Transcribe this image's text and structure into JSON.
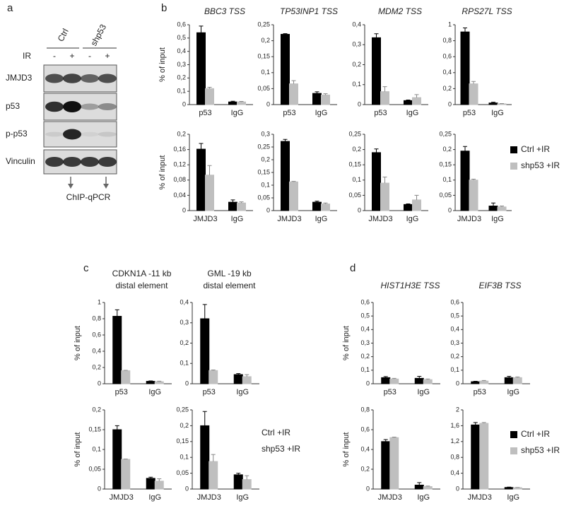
{
  "blot": {
    "label": "a",
    "groups": [
      "Ctrl",
      "shp53"
    ],
    "treatment": "IR",
    "lanes": [
      "-",
      "+",
      "-",
      "+"
    ],
    "rows": [
      "JMJD3",
      "p53",
      "p-p53",
      "Vinculin"
    ],
    "note": "ChIP-qPCR"
  },
  "panel_labels": [
    "b",
    "c",
    "d"
  ],
  "chart_data": [
    {
      "type": "bar",
      "title": "BBC3 TSS",
      "y_label": "% of input",
      "categories": [
        "p53",
        "IgG"
      ],
      "series": [
        {
          "color": "#000000",
          "values": [
            0.54,
            0.02
          ],
          "errors": [
            0.05,
            0.005
          ]
        },
        {
          "color": "#bfbfbf",
          "values": [
            0.12,
            0.02
          ],
          "errors": [
            0.01,
            0.004
          ]
        }
      ],
      "ylim": [
        0,
        0.6
      ],
      "yticks": [
        0,
        {
          "value": 0.1,
          "label": "0,1"
        },
        {
          "value": 0.2,
          "label": "0,2"
        },
        {
          "value": 0.3,
          "label": "0,3"
        },
        {
          "value": 0.4,
          "label": "0,4"
        },
        {
          "value": 0.5,
          "label": "0,5"
        },
        {
          "value": 0.6,
          "label": "0,6"
        }
      ]
    },
    {
      "type": "bar",
      "title": "TP53INP1 TSS",
      "categories": [
        "p53",
        "IgG"
      ],
      "series": [
        {
          "color": "#000000",
          "values": [
            0.22,
            0.035
          ],
          "errors": [
            0.002,
            0.005
          ]
        },
        {
          "color": "#bfbfbf",
          "values": [
            0.065,
            0.03
          ],
          "errors": [
            0.01,
            0.004
          ]
        }
      ],
      "ylim": [
        0,
        0.25
      ],
      "yticks": [
        0,
        {
          "value": 0.05,
          "label": "0,05"
        },
        {
          "value": 0.1,
          "label": "0,1"
        },
        {
          "value": 0.15,
          "label": "0,15"
        },
        {
          "value": 0.2,
          "label": "0,2"
        },
        {
          "value": 0.25,
          "label": "0,25"
        }
      ]
    },
    {
      "type": "bar",
      "title": "MDM2 TSS",
      "categories": [
        "p53",
        "IgG"
      ],
      "series": [
        {
          "color": "#000000",
          "values": [
            0.335,
            0.02
          ],
          "errors": [
            0.02,
            0.003
          ]
        },
        {
          "color": "#bfbfbf",
          "values": [
            0.065,
            0.035
          ],
          "errors": [
            0.025,
            0.015
          ]
        }
      ],
      "ylim": [
        0,
        0.4
      ],
      "yticks": [
        0,
        {
          "value": 0.1,
          "label": "0,1"
        },
        {
          "value": 0.2,
          "label": "0,2"
        },
        {
          "value": 0.3,
          "label": "0,3"
        },
        {
          "value": 0.4,
          "label": "0,4"
        }
      ]
    },
    {
      "type": "bar",
      "title": "RPS27L TSS",
      "categories": [
        "p53",
        "IgG"
      ],
      "series": [
        {
          "color": "#000000",
          "values": [
            0.91,
            0.02
          ],
          "errors": [
            0.05,
            0.01
          ]
        },
        {
          "color": "#bfbfbf",
          "values": [
            0.26,
            0.01
          ],
          "errors": [
            0.03,
            0.003
          ]
        }
      ],
      "ylim": [
        0,
        1
      ],
      "yticks": [
        0,
        {
          "value": 0.2,
          "label": "0,2"
        },
        {
          "value": 0.4,
          "label": "0,4"
        },
        {
          "value": 0.6,
          "label": "0,6"
        },
        {
          "value": 0.8,
          "label": "0,8"
        },
        1
      ]
    },
    {
      "type": "bar",
      "y_label": "% of input",
      "categories": [
        "JMJD3",
        "IgG"
      ],
      "series": [
        {
          "color": "#000000",
          "values": [
            0.161,
            0.022
          ],
          "errors": [
            0.015,
            0.006
          ]
        },
        {
          "color": "#bfbfbf",
          "values": [
            0.093,
            0.02
          ],
          "errors": [
            0.025,
            0.003
          ]
        }
      ],
      "ylim": [
        0,
        0.2
      ],
      "yticks": [
        0,
        {
          "value": 0.04,
          "label": "0,04"
        },
        {
          "value": 0.08,
          "label": "0,08"
        },
        {
          "value": 0.12,
          "label": "0,12"
        },
        {
          "value": 0.16,
          "label": "0,16"
        },
        {
          "value": 0.2,
          "label": "0,2"
        }
      ]
    },
    {
      "type": "bar",
      "categories": [
        "JMJD3",
        "IgG"
      ],
      "series": [
        {
          "color": "#000000",
          "values": [
            0.272,
            0.033
          ],
          "errors": [
            0.008,
            0.004
          ]
        },
        {
          "color": "#bfbfbf",
          "values": [
            0.113,
            0.026
          ],
          "errors": [
            0.002,
            0.004
          ]
        }
      ],
      "ylim": [
        0,
        0.3
      ],
      "yticks": [
        0,
        {
          "value": 0.05,
          "label": "0,05"
        },
        {
          "value": 0.1,
          "label": "0,1"
        },
        {
          "value": 0.15,
          "label": "0,15"
        },
        {
          "value": 0.2,
          "label": "0,2"
        },
        {
          "value": 0.25,
          "label": "0,25"
        },
        {
          "value": 0.3,
          "label": "0,3"
        }
      ]
    },
    {
      "type": "bar",
      "categories": [
        "JMJD3",
        "IgG"
      ],
      "series": [
        {
          "color": "#000000",
          "values": [
            0.19,
            0.02
          ],
          "errors": [
            0.012,
            0.002
          ]
        },
        {
          "color": "#bfbfbf",
          "values": [
            0.09,
            0.035
          ],
          "errors": [
            0.02,
            0.015
          ]
        }
      ],
      "ylim": [
        0,
        0.25
      ],
      "yticks": [
        0,
        {
          "value": 0.05,
          "label": "0,05"
        },
        {
          "value": 0.1,
          "label": "0,1"
        },
        {
          "value": 0.15,
          "label": "0,15"
        },
        {
          "value": 0.2,
          "label": "0,2"
        },
        {
          "value": 0.25,
          "label": "0,25"
        }
      ]
    },
    {
      "type": "bar",
      "categories": [
        "JMJD3",
        "IgG"
      ],
      "series": [
        {
          "name": "Ctrl +IR",
          "color": "#000000",
          "values": [
            0.195,
            0.015
          ],
          "errors": [
            0.015,
            0.01
          ]
        },
        {
          "name": "shp53 +IR",
          "color": "#bfbfbf",
          "values": [
            0.1,
            0.012
          ],
          "errors": [
            0.003,
            0.003
          ]
        }
      ],
      "ylim": [
        0,
        0.25
      ],
      "yticks": [
        0,
        {
          "value": 0.05,
          "label": "0,05"
        },
        {
          "value": 0.1,
          "label": "0,1"
        },
        {
          "value": 0.15,
          "label": "0,15"
        },
        {
          "value": 0.2,
          "label": "0,2"
        },
        {
          "value": 0.25,
          "label": "0,25"
        }
      ],
      "legend": "right",
      "legend_markers": true
    },
    {
      "type": "bar",
      "title": [
        "CDKN1A -11 kb",
        "distal element"
      ],
      "y_label": "% of input",
      "categories": [
        "p53",
        "IgG"
      ],
      "series": [
        {
          "color": "#000000",
          "values": [
            0.83,
            0.03
          ],
          "errors": [
            0.08,
            0.005
          ]
        },
        {
          "color": "#bfbfbf",
          "values": [
            0.16,
            0.025
          ],
          "errors": [
            0.005,
            0.007
          ]
        }
      ],
      "ylim": [
        0,
        1
      ],
      "yticks": [
        0,
        {
          "value": 0.2,
          "label": "0,2"
        },
        {
          "value": 0.4,
          "label": "0,4"
        },
        {
          "value": 0.6,
          "label": "0,6"
        },
        {
          "value": 0.8,
          "label": "0,8"
        },
        1
      ]
    },
    {
      "type": "bar",
      "title": [
        "GML -19 kb",
        "distal element"
      ],
      "categories": [
        "p53",
        "IgG"
      ],
      "series": [
        {
          "color": "#000000",
          "values": [
            0.32,
            0.045
          ],
          "errors": [
            0.07,
            0.005
          ]
        },
        {
          "color": "#bfbfbf",
          "values": [
            0.065,
            0.035
          ],
          "errors": [
            0.003,
            0.01
          ]
        }
      ],
      "ylim": [
        0,
        0.4
      ],
      "yticks": [
        0,
        {
          "value": 0.1,
          "label": "0,1"
        },
        {
          "value": 0.2,
          "label": "0,2"
        },
        {
          "value": 0.3,
          "label": "0,3"
        },
        {
          "value": 0.4,
          "label": "0,4"
        }
      ]
    },
    {
      "type": "bar",
      "y_label": "% of input",
      "categories": [
        "JMJD3",
        "IgG"
      ],
      "series": [
        {
          "color": "#000000",
          "values": [
            0.15,
            0.027
          ],
          "errors": [
            0.01,
            0.003
          ]
        },
        {
          "color": "#bfbfbf",
          "values": [
            0.075,
            0.02
          ],
          "errors": [
            0.001,
            0.006
          ]
        }
      ],
      "ylim": [
        0,
        0.2
      ],
      "yticks": [
        0,
        {
          "value": 0.05,
          "label": "0,05"
        },
        {
          "value": 0.1,
          "label": "0,1"
        },
        {
          "value": 0.15,
          "label": "0,15"
        },
        {
          "value": 0.2,
          "label": "0,2"
        }
      ]
    },
    {
      "type": "bar",
      "categories": [
        "JMJD3",
        "IgG"
      ],
      "series": [
        {
          "name": "Ctrl +IR",
          "color": "#000000",
          "values": [
            0.2,
            0.045
          ],
          "errors": [
            0.045,
            0.005
          ]
        },
        {
          "name": "shp53 +IR",
          "color": "#bfbfbf",
          "values": [
            0.087,
            0.03
          ],
          "errors": [
            0.022,
            0.012
          ]
        }
      ],
      "ylim": [
        0,
        0.25
      ],
      "yticks": [
        0,
        {
          "value": 0.05,
          "label": "0,05"
        },
        {
          "value": 0.1,
          "label": "0,1"
        },
        {
          "value": 0.15,
          "label": "0,15"
        },
        {
          "value": 0.2,
          "label": "0,2"
        },
        {
          "value": 0.25,
          "label": "0,25"
        }
      ],
      "legend": "right",
      "legend_markers": false
    },
    {
      "type": "bar",
      "title": "HIST1H3E TSS",
      "y_label": "% of input",
      "categories": [
        "p53",
        "IgG"
      ],
      "series": [
        {
          "color": "#000000",
          "values": [
            0.045,
            0.04
          ],
          "errors": [
            0.008,
            0.015
          ]
        },
        {
          "color": "#bfbfbf",
          "values": [
            0.035,
            0.03
          ],
          "errors": [
            0.005,
            0.005
          ]
        }
      ],
      "ylim": [
        0,
        0.6
      ],
      "yticks": [
        0,
        {
          "value": 0.1,
          "label": "0,1"
        },
        {
          "value": 0.2,
          "label": "0,2"
        },
        {
          "value": 0.3,
          "label": "0,3"
        },
        {
          "value": 0.4,
          "label": "0,4"
        },
        {
          "value": 0.5,
          "label": "0,5"
        },
        {
          "value": 0.6,
          "label": "0,6"
        }
      ]
    },
    {
      "type": "bar",
      "title": "EIF3B TSS",
      "categories": [
        "p53",
        "IgG"
      ],
      "series": [
        {
          "color": "#000000",
          "values": [
            0.015,
            0.045
          ],
          "errors": [
            0.003,
            0.01
          ]
        },
        {
          "color": "#bfbfbf",
          "values": [
            0.02,
            0.045
          ],
          "errors": [
            0.004,
            0.005
          ]
        }
      ],
      "ylim": [
        0,
        0.6
      ],
      "yticks": [
        0,
        {
          "value": 0.1,
          "label": "0,1"
        },
        {
          "value": 0.2,
          "label": "0,2"
        },
        {
          "value": 0.3,
          "label": "0,3"
        },
        {
          "value": 0.4,
          "label": "0,4"
        },
        {
          "value": 0.5,
          "label": "0,5"
        },
        {
          "value": 0.6,
          "label": "0,6"
        }
      ]
    },
    {
      "type": "bar",
      "y_label": "% of input",
      "categories": [
        "JMJD3",
        "IgG"
      ],
      "series": [
        {
          "color": "#000000",
          "values": [
            0.48,
            0.04
          ],
          "errors": [
            0.02,
            0.025
          ]
        },
        {
          "color": "#bfbfbf",
          "values": [
            0.52,
            0.025
          ],
          "errors": [
            0.005,
            0.005
          ]
        }
      ],
      "ylim": [
        0,
        0.8
      ],
      "yticks": [
        0,
        {
          "value": 0.2,
          "label": "0,2"
        },
        {
          "value": 0.4,
          "label": "0,4"
        },
        {
          "value": 0.6,
          "label": "0,6"
        },
        {
          "value": 0.8,
          "label": "0,8"
        }
      ]
    },
    {
      "type": "bar",
      "categories": [
        "JMJD3",
        "IgG"
      ],
      "series": [
        {
          "name": "Ctrl +IR",
          "color": "#000000",
          "values": [
            1.62,
            0.04
          ],
          "errors": [
            0.06,
            0.008
          ]
        },
        {
          "name": "shp53 +IR",
          "color": "#bfbfbf",
          "values": [
            1.66,
            0.035
          ],
          "errors": [
            0.02,
            0.005
          ]
        }
      ],
      "ylim": [
        0,
        2
      ],
      "yticks": [
        0,
        {
          "value": 0.4,
          "label": "0,4"
        },
        {
          "value": 0.8,
          "label": "0,8"
        },
        {
          "value": 1.2,
          "label": "1,2"
        },
        {
          "value": 1.6,
          "label": "1,6"
        },
        2
      ],
      "legend": "right",
      "legend_markers": true
    }
  ]
}
